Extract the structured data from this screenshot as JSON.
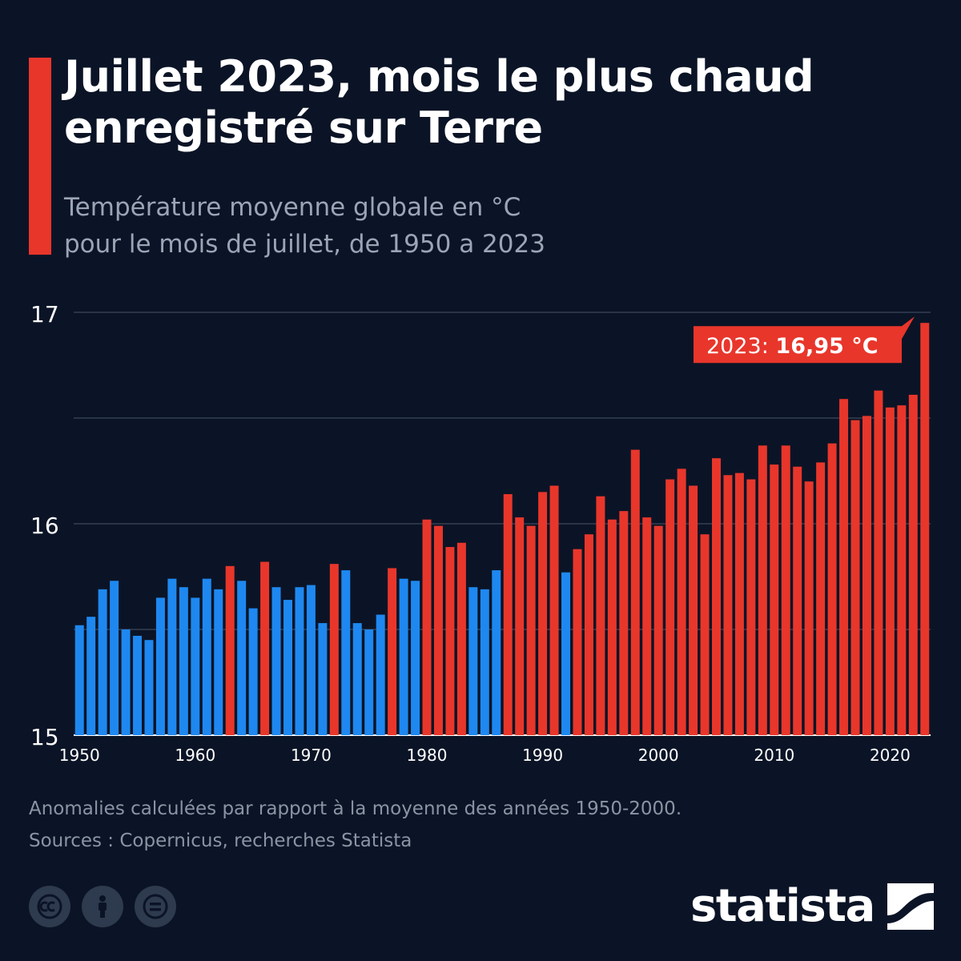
{
  "title": "Juillet 2023, mois le plus chaud enregistré sur Terre",
  "subtitle": {
    "line1": "Température moyenne globale en °C",
    "line2": "pour le mois de juillet, de 1950 a 2023"
  },
  "footnote": {
    "line1": "Anomalies calculées par rapport à la moyenne des années 1950-2000.",
    "line2": "Sources : Copernicus, recherches Statista"
  },
  "brand": {
    "name": "statista",
    "logo_icon": "statista-logo-icon"
  },
  "license_icons": [
    "creative-commons-icon",
    "attribution-icon",
    "no-derivatives-icon"
  ],
  "colors": {
    "background": "#0b1426",
    "above_average": "#e8362b",
    "below_average": "#1e88f0",
    "grid": "#4a5568",
    "accent": "#e8362b"
  },
  "chart_data": {
    "type": "bar",
    "title": "",
    "xlabel": "",
    "ylabel": "",
    "ylim": [
      15,
      17
    ],
    "yticks": [
      15,
      16,
      17
    ],
    "gridlines": [
      15.5,
      16,
      16.5,
      17
    ],
    "xticks": [
      1950,
      1960,
      1970,
      1980,
      1990,
      2000,
      2010,
      2020
    ],
    "baseline_mean": 15.75,
    "x": [
      1950,
      1951,
      1952,
      1953,
      1954,
      1955,
      1956,
      1957,
      1958,
      1959,
      1960,
      1961,
      1962,
      1963,
      1964,
      1965,
      1966,
      1967,
      1968,
      1969,
      1970,
      1971,
      1972,
      1973,
      1974,
      1975,
      1976,
      1977,
      1978,
      1979,
      1980,
      1981,
      1982,
      1983,
      1984,
      1985,
      1986,
      1987,
      1988,
      1989,
      1990,
      1991,
      1992,
      1993,
      1994,
      1995,
      1996,
      1997,
      1998,
      1999,
      2000,
      2001,
      2002,
      2003,
      2004,
      2005,
      2006,
      2007,
      2008,
      2009,
      2010,
      2011,
      2012,
      2013,
      2014,
      2015,
      2016,
      2017,
      2018,
      2019,
      2020,
      2021,
      2022,
      2023
    ],
    "values": [
      15.52,
      15.56,
      15.69,
      15.73,
      15.5,
      15.47,
      15.45,
      15.65,
      15.74,
      15.7,
      15.65,
      15.74,
      15.69,
      15.8,
      15.73,
      15.6,
      15.82,
      15.7,
      15.64,
      15.7,
      15.71,
      15.53,
      15.81,
      15.78,
      15.53,
      15.5,
      15.57,
      15.79,
      15.74,
      15.73,
      16.02,
      15.99,
      15.89,
      15.91,
      15.7,
      15.69,
      15.78,
      16.14,
      16.03,
      15.99,
      16.15,
      16.18,
      15.77,
      15.88,
      15.95,
      16.13,
      16.02,
      16.06,
      16.35,
      16.03,
      15.99,
      16.21,
      16.26,
      16.18,
      15.95,
      16.31,
      16.23,
      16.24,
      16.21,
      16.37,
      16.28,
      16.37,
      16.27,
      16.2,
      16.29,
      16.38,
      16.59,
      16.49,
      16.51,
      16.63,
      16.55,
      16.56,
      16.61,
      16.95
    ],
    "colors": [
      "below",
      "below",
      "below",
      "below",
      "below",
      "below",
      "below",
      "below",
      "below",
      "below",
      "below",
      "below",
      "below",
      "above",
      "below",
      "below",
      "above",
      "below",
      "below",
      "below",
      "below",
      "below",
      "above",
      "below",
      "below",
      "below",
      "below",
      "above",
      "below",
      "below",
      "above",
      "above",
      "above",
      "above",
      "below",
      "below",
      "below",
      "above",
      "above",
      "above",
      "above",
      "above",
      "below",
      "above",
      "above",
      "above",
      "above",
      "above",
      "above",
      "above",
      "above",
      "above",
      "above",
      "above",
      "above",
      "above",
      "above",
      "above",
      "above",
      "above",
      "above",
      "above",
      "above",
      "above",
      "above",
      "above",
      "above",
      "above",
      "above",
      "above",
      "above",
      "above",
      "above",
      "above"
    ],
    "annotation": {
      "year": 2023,
      "prefix": "2023: ",
      "value_text": "16,95 °C"
    }
  }
}
